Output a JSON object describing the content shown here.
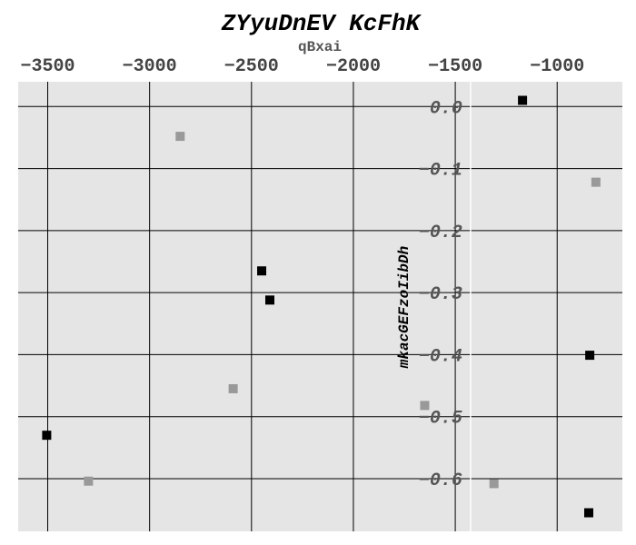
{
  "chart_data": {
    "type": "scatter",
    "title": "ZYyuDnEV KcFhK",
    "xlabel": "qBxai",
    "ylabel": "mkacGEFzoIibDh",
    "xlim": [
      -3645,
      -680
    ],
    "ylim": [
      -0.685,
      0.04
    ],
    "x_axis_position": "top",
    "y_axis_crosses_x": -1425,
    "grid": true,
    "background": "#e5e5e5",
    "xticks": [
      -3500,
      -3000,
      -2500,
      -2000,
      -1500,
      -1000
    ],
    "xtick_labels": [
      "−3500",
      "−3000",
      "−2500",
      "−2000",
      "−1500",
      "−1000"
    ],
    "yticks": [
      0.0,
      -0.1,
      -0.2,
      -0.3,
      -0.4,
      -0.5,
      -0.6
    ],
    "ytick_labels": [
      "0.0",
      "−0.1",
      "−0.2",
      "−0.3",
      "−0.4",
      "−0.5",
      "−0.6"
    ],
    "series": [
      {
        "color": "#000000",
        "points": [
          {
            "x": -3505,
            "y": -0.53
          },
          {
            "x": -2450,
            "y": -0.265
          },
          {
            "x": -2410,
            "y": -0.312
          },
          {
            "x": -1170,
            "y": 0.01
          },
          {
            "x": -840,
            "y": -0.401
          },
          {
            "x": -845,
            "y": -0.655
          }
        ]
      },
      {
        "color": "#999999",
        "points": [
          {
            "x": -3300,
            "y": -0.604
          },
          {
            "x": -2850,
            "y": -0.048
          },
          {
            "x": -2590,
            "y": -0.455
          },
          {
            "x": -1650,
            "y": -0.482
          },
          {
            "x": -1310,
            "y": -0.608
          },
          {
            "x": -810,
            "y": -0.122
          }
        ]
      }
    ]
  }
}
